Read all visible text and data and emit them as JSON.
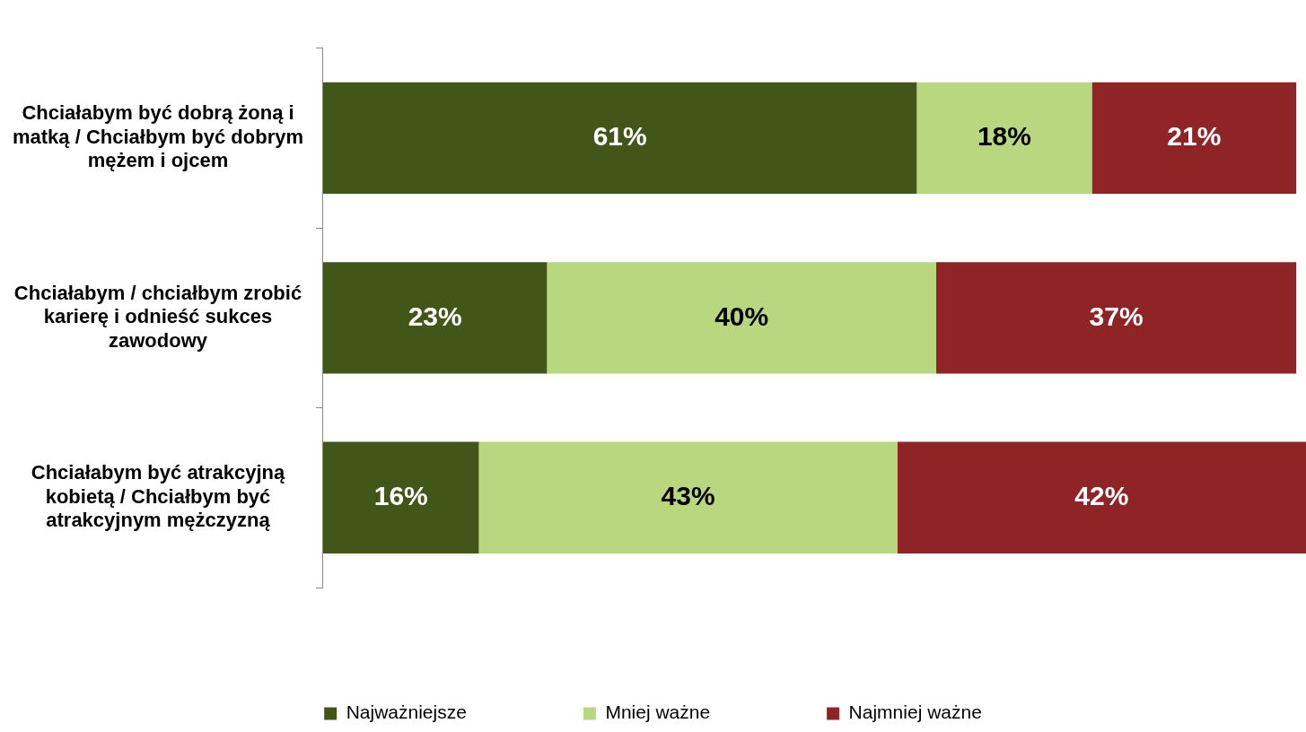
{
  "chart_data": {
    "type": "bar",
    "orientation": "horizontal",
    "stacked": true,
    "legend": "bottom",
    "grid": false,
    "categories": [
      "Chciałabym być dobrą żoną i matką / Chciałbym być dobrym mężem i ojcem",
      "Chciałabym / chciałbym zrobić karierę i odnieść sukces zawodowy",
      "Chciałabym być atrakcyjną kobietą / Chciałbym być atrakcyjnym mężczyzną"
    ],
    "series": [
      {
        "name": "Najważniejsze",
        "color": "#43561a",
        "values": [
          61,
          23,
          16
        ],
        "value_labels": [
          "61%",
          "23%",
          "16%"
        ]
      },
      {
        "name": "Mniej ważne",
        "color": "#b9d77f",
        "values": [
          18,
          40,
          43
        ],
        "value_labels": [
          "18%",
          "40%",
          "43%"
        ]
      },
      {
        "name": "Najmniej ważne",
        "color": "#8e2426",
        "values": [
          21,
          37,
          42
        ],
        "value_labels": [
          "21%",
          "37%",
          "42%"
        ]
      }
    ]
  }
}
